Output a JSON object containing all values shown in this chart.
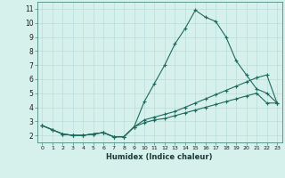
{
  "title": "",
  "xlabel": "Humidex (Indice chaleur)",
  "ylabel": "",
  "background_color": "#d6f0ec",
  "grid_color": "#b8dcd8",
  "line_color": "#1e6b5e",
  "xlim": [
    -0.5,
    23.5
  ],
  "ylim": [
    1.5,
    11.5
  ],
  "yticks": [
    2,
    3,
    4,
    5,
    6,
    7,
    8,
    9,
    10,
    11
  ],
  "xticks": [
    0,
    1,
    2,
    3,
    4,
    5,
    6,
    7,
    8,
    9,
    10,
    11,
    12,
    13,
    14,
    15,
    16,
    17,
    18,
    19,
    20,
    21,
    22,
    23
  ],
  "series1_x": [
    0,
    1,
    2,
    3,
    4,
    5,
    6,
    7,
    8,
    9,
    10,
    11,
    12,
    13,
    14,
    15,
    16,
    17,
    18,
    19,
    20,
    21,
    22,
    23
  ],
  "series1_y": [
    2.7,
    2.4,
    2.1,
    2.0,
    2.0,
    2.1,
    2.2,
    1.9,
    1.9,
    2.6,
    4.4,
    5.7,
    7.0,
    8.5,
    9.6,
    10.9,
    10.4,
    10.1,
    9.0,
    7.3,
    6.3,
    5.3,
    5.0,
    4.3
  ],
  "series2_x": [
    0,
    1,
    2,
    3,
    4,
    5,
    6,
    7,
    8,
    9,
    10,
    11,
    12,
    13,
    14,
    15,
    16,
    17,
    18,
    19,
    20,
    21,
    22,
    23
  ],
  "series2_y": [
    2.7,
    2.4,
    2.1,
    2.0,
    2.0,
    2.1,
    2.2,
    1.9,
    1.9,
    2.6,
    3.1,
    3.3,
    3.5,
    3.7,
    4.0,
    4.3,
    4.6,
    4.9,
    5.2,
    5.5,
    5.8,
    6.1,
    6.3,
    4.3
  ],
  "series3_x": [
    0,
    1,
    2,
    3,
    4,
    5,
    6,
    7,
    8,
    9,
    10,
    11,
    12,
    13,
    14,
    15,
    16,
    17,
    18,
    19,
    20,
    21,
    22,
    23
  ],
  "series3_y": [
    2.7,
    2.4,
    2.1,
    2.0,
    2.0,
    2.1,
    2.2,
    1.9,
    1.9,
    2.6,
    2.9,
    3.1,
    3.2,
    3.4,
    3.6,
    3.8,
    4.0,
    4.2,
    4.4,
    4.6,
    4.8,
    5.0,
    4.3,
    4.3
  ]
}
